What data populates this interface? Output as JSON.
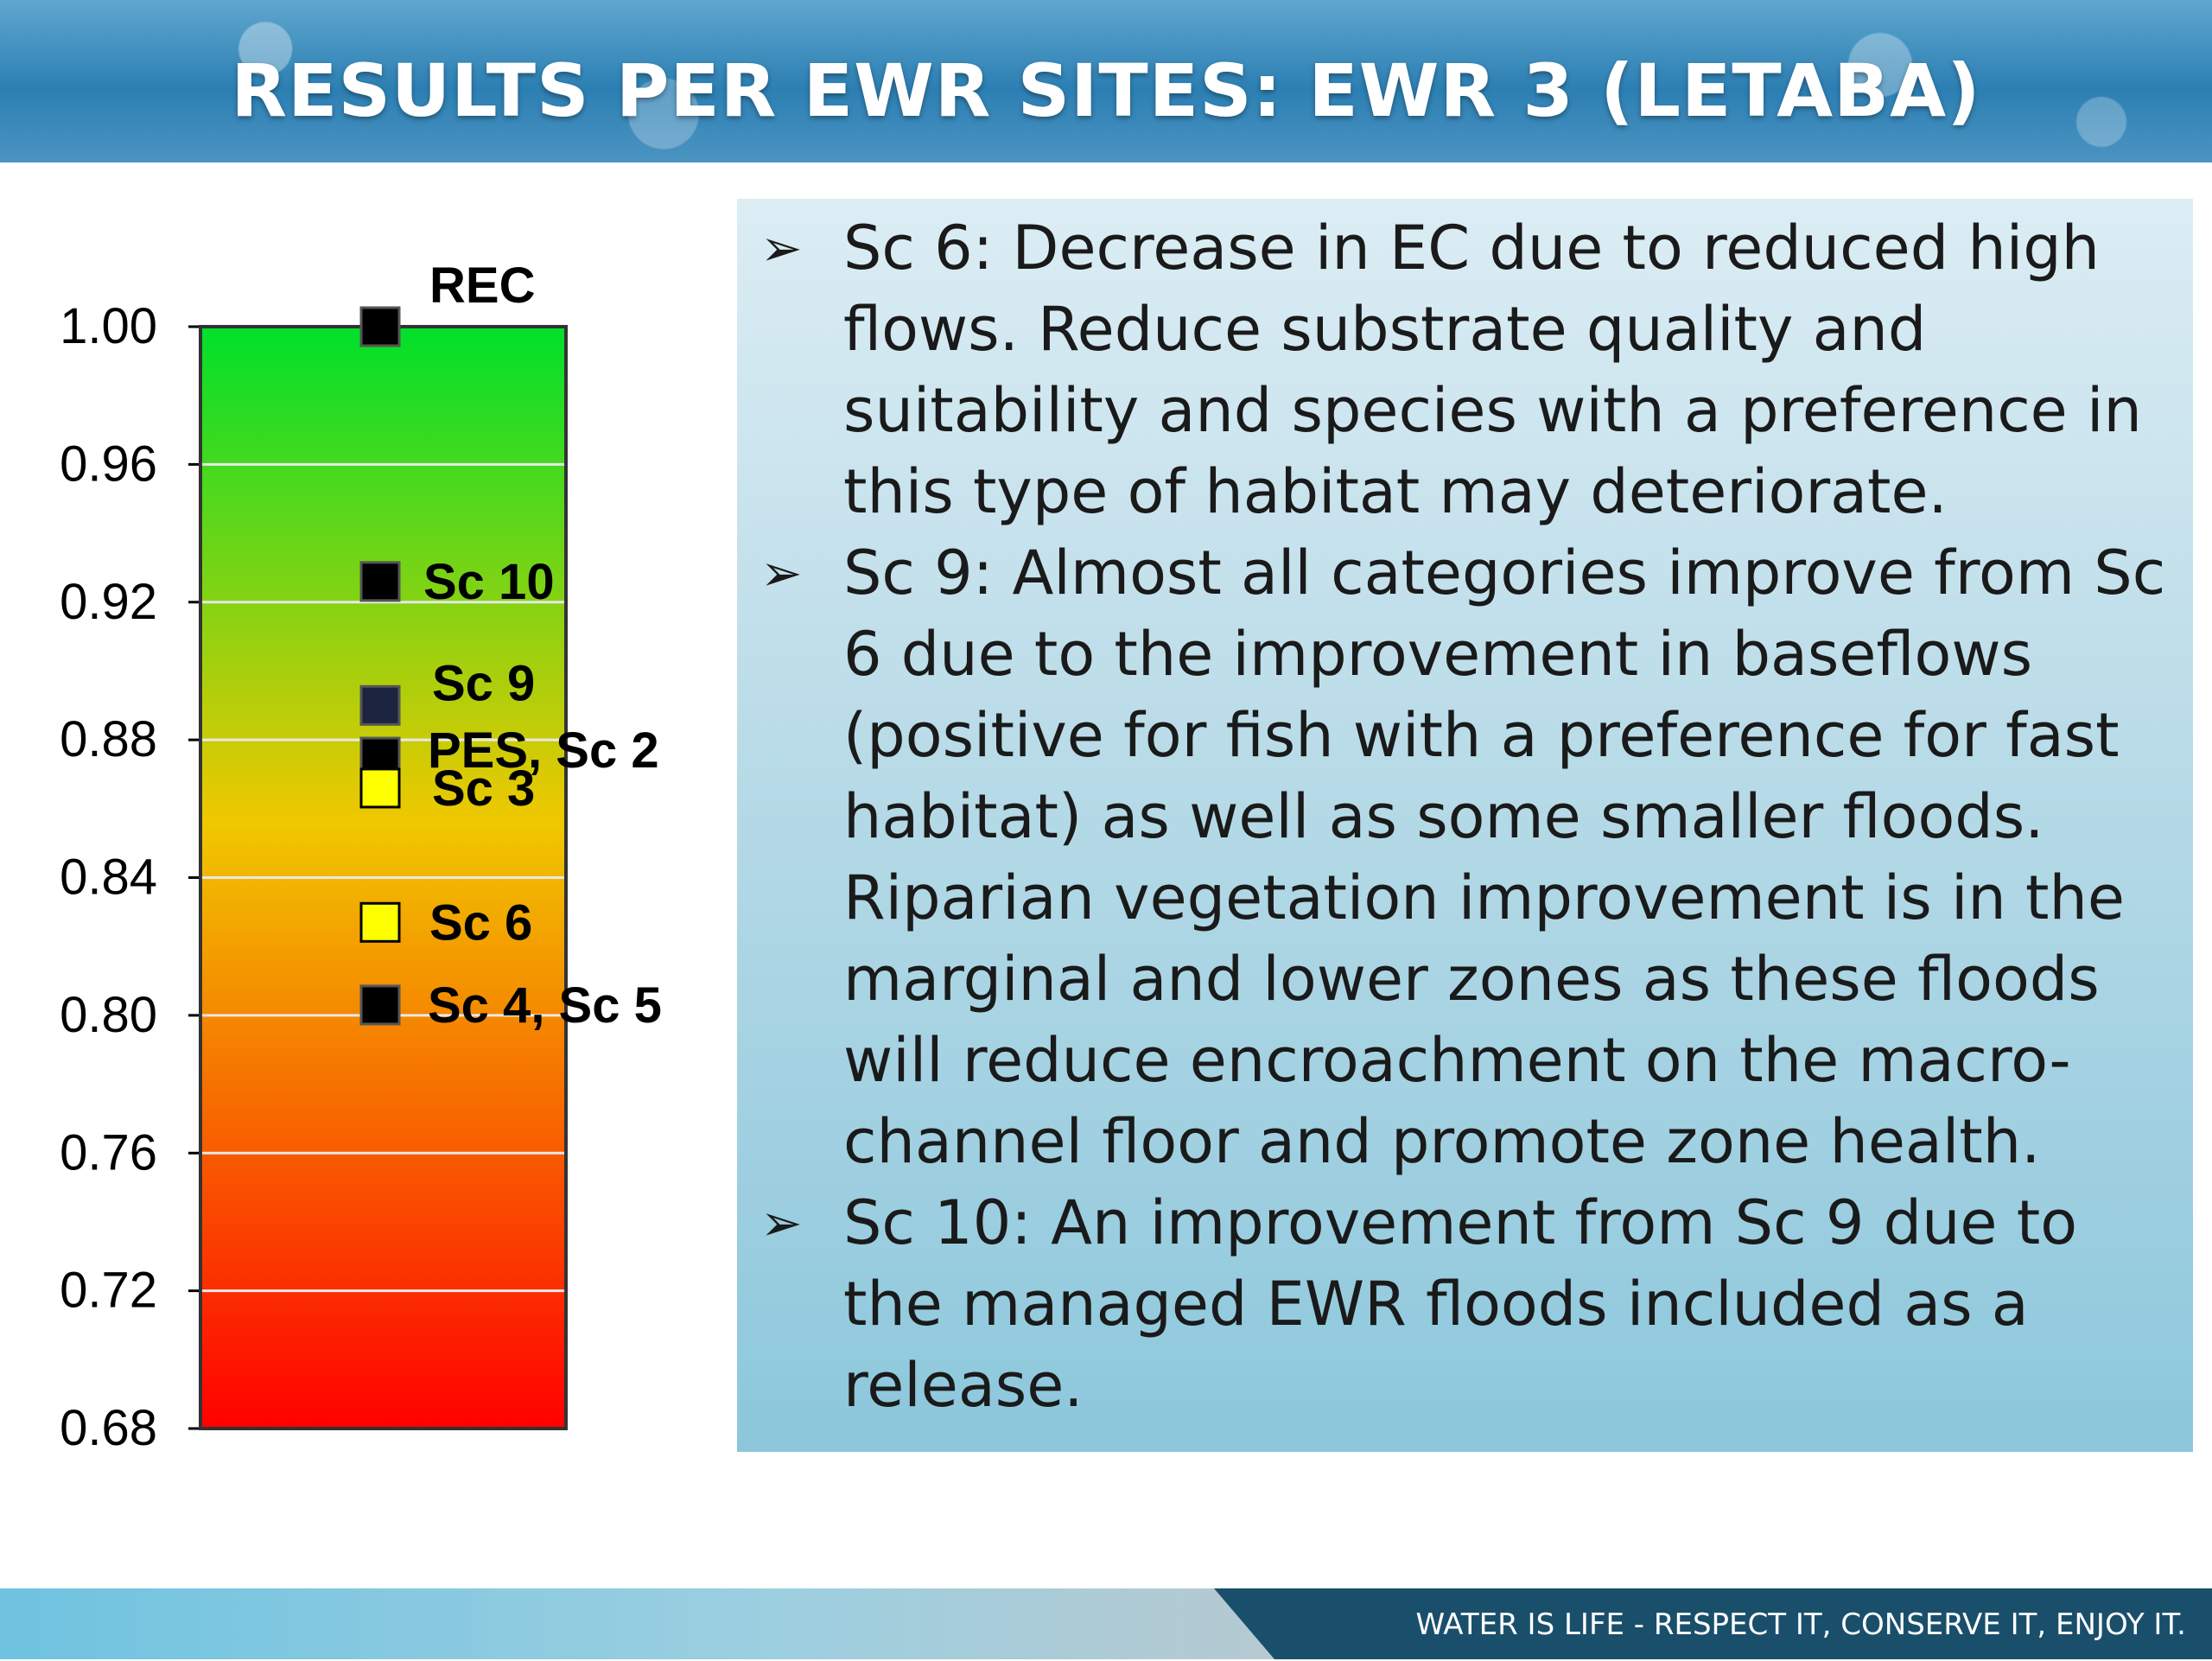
{
  "header": {
    "title": "RESULTS PER EWR SITES: EWR 3 (LETABA)"
  },
  "chart_data": {
    "type": "scatter",
    "ylim": [
      0.68,
      1.0
    ],
    "y_ticks": [
      "0.68",
      "0.72",
      "0.76",
      "0.80",
      "0.84",
      "0.88",
      "0.92",
      "0.96",
      "1.00"
    ],
    "grid": true,
    "background_gradient": [
      "#00e02a",
      "#f0c800",
      "#ff0000"
    ],
    "points": [
      {
        "label": "REC",
        "y": 1.0,
        "color": "#000000"
      },
      {
        "label": "Sc 10",
        "y": 0.926,
        "color": "#000000"
      },
      {
        "label": "Sc 9",
        "y": 0.89,
        "color": "#1c2440"
      },
      {
        "label": "PES, Sc 2",
        "y": 0.875,
        "color": "#000000"
      },
      {
        "label": "Sc 3",
        "y": 0.866,
        "color": "#ffff00"
      },
      {
        "label": "Sc 6",
        "y": 0.827,
        "color": "#ffff00"
      },
      {
        "label": "Sc 4, Sc 5",
        "y": 0.803,
        "color": "#000000"
      }
    ]
  },
  "bullets": [
    "Sc 6: Decrease in EC due to reduced high flows. Reduce substrate quality and suitability and species with a preference in this type of habitat may deteriorate.",
    "Sc 9: Almost all categories improve from Sc 6 due to the improvement in baseflows (positive for fish with a preference for fast habitat) as well as some smaller floods.  Riparian vegetation improvement is in the marginal and lower zones as these floods will reduce encroachment on the macro-channel floor and promote zone health.",
    "Sc 10: An improvement from Sc 9 due to the managed EWR floods included as a release."
  ],
  "footer": {
    "slogan": "WATER IS LIFE - RESPECT IT, CONSERVE IT, ENJOY IT."
  }
}
